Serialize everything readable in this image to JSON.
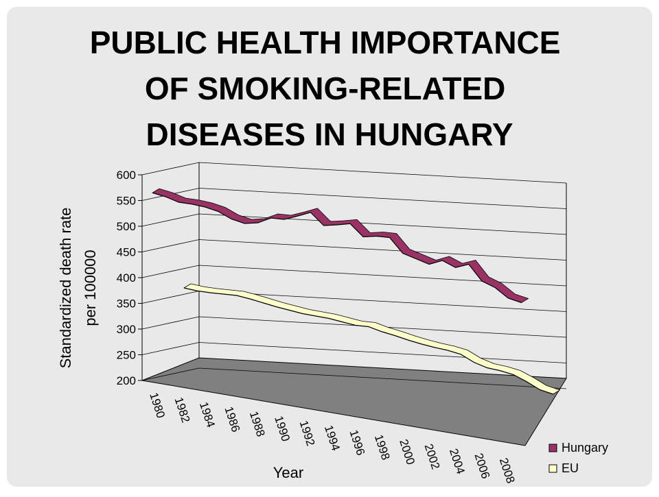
{
  "chart_data": {
    "type": "line3d",
    "title": [
      "PUBLIC HEALTH IMPORTANCE",
      "OF SMOKING-RELATED",
      "DISEASES IN HUNGARY"
    ],
    "x_label": "Year",
    "y_label": [
      "Standardized death rate",
      "per 100000"
    ],
    "categories": [
      "1980",
      null,
      "1982",
      null,
      "1984",
      null,
      "1986",
      null,
      "1988",
      null,
      "1990",
      null,
      "1992",
      null,
      "1994",
      null,
      "1996",
      null,
      "1998",
      null,
      "2000",
      null,
      "2002",
      null,
      "2004",
      null,
      "2006",
      null,
      "2008"
    ],
    "series": [
      {
        "name": "Hungary",
        "color": "#993366",
        "values": [
          565,
          558,
          548,
          545,
          540,
          532,
          518,
          510,
          512,
          522,
          520,
          527,
          535,
          510,
          512,
          515,
          490,
          492,
          490,
          460,
          450,
          440,
          448,
          435,
          442,
          410,
          398,
          378,
          370
        ]
      },
      {
        "name": "EU",
        "color": "#ffffcc",
        "values": [
          380,
          375,
          372,
          370,
          368,
          362,
          355,
          348,
          342,
          336,
          332,
          328,
          322,
          316,
          314,
          305,
          298,
          290,
          283,
          277,
          272,
          265,
          250,
          240,
          235,
          228,
          215,
          200,
          192
        ]
      }
    ],
    "ylim": [
      200,
      600
    ],
    "yticks": [
      200,
      250,
      300,
      350,
      400,
      450,
      500,
      550,
      600
    ],
    "grid": true,
    "legend": "bottom-right"
  }
}
